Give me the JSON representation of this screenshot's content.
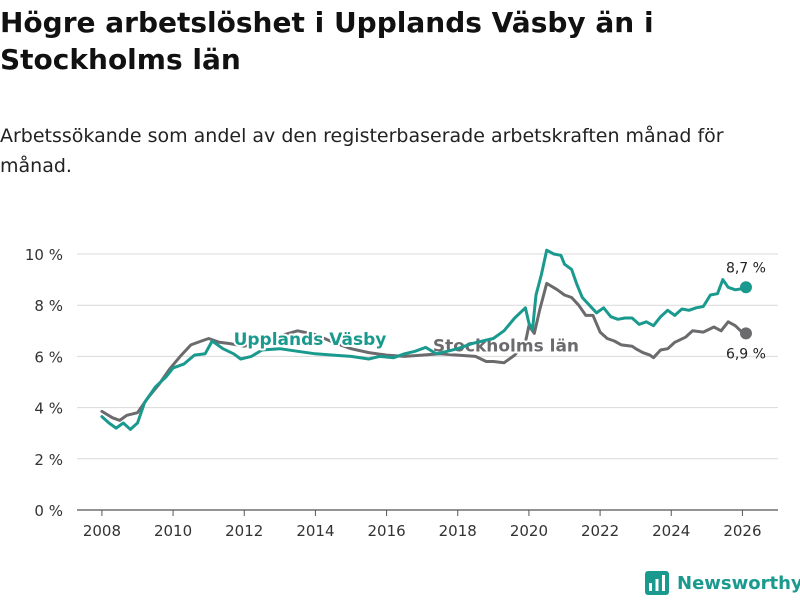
{
  "title": "Högre arbetslöshet i Upplands Väsby än i Stockholms län",
  "subtitle": "Arbetssökande som andel av den registerbaserade arbetskraften månad för månad.",
  "brand": {
    "name": "Newsworthy",
    "icon": "newsworthy-logo-icon"
  },
  "chart_data": {
    "type": "line",
    "xlabel": "",
    "ylabel": "",
    "xlim": [
      2007.3,
      2027
    ],
    "ylim": [
      0,
      10
    ],
    "x_ticks": [
      2008,
      2010,
      2012,
      2014,
      2016,
      2018,
      2020,
      2022,
      2024,
      2026
    ],
    "x_tick_labels": [
      "2008",
      "2010",
      "2012",
      "2014",
      "2016",
      "2018",
      "2020",
      "2022",
      "2024",
      "2026"
    ],
    "y_ticks": [
      0,
      2,
      4,
      6,
      8,
      10
    ],
    "y_tick_labels": [
      "0 %",
      "2 %",
      "4 %",
      "6 %",
      "8 %",
      "10 %"
    ],
    "grid": true,
    "series": [
      {
        "name": "Stockholms län",
        "color": "#6b6b6e",
        "label_at": [
          2017.3,
          6.2
        ],
        "end_label": "6,9 %",
        "points": [
          [
            2008.0,
            3.85
          ],
          [
            2008.3,
            3.6
          ],
          [
            2008.5,
            3.5
          ],
          [
            2008.7,
            3.7
          ],
          [
            2009.0,
            3.8
          ],
          [
            2009.3,
            4.4
          ],
          [
            2009.6,
            4.9
          ],
          [
            2009.9,
            5.5
          ],
          [
            2010.2,
            6.0
          ],
          [
            2010.5,
            6.45
          ],
          [
            2010.8,
            6.6
          ],
          [
            2011.0,
            6.7
          ],
          [
            2011.3,
            6.55
          ],
          [
            2011.6,
            6.5
          ],
          [
            2012.0,
            6.4
          ],
          [
            2012.5,
            6.6
          ],
          [
            2013.0,
            6.8
          ],
          [
            2013.5,
            7.0
          ],
          [
            2014.0,
            6.85
          ],
          [
            2014.5,
            6.55
          ],
          [
            2015.0,
            6.3
          ],
          [
            2015.5,
            6.15
          ],
          [
            2016.0,
            6.05
          ],
          [
            2016.5,
            6.0
          ],
          [
            2017.0,
            6.05
          ],
          [
            2017.5,
            6.1
          ],
          [
            2018.0,
            6.05
          ],
          [
            2018.5,
            6.0
          ],
          [
            2018.8,
            5.8
          ],
          [
            2019.0,
            5.8
          ],
          [
            2019.3,
            5.75
          ],
          [
            2019.6,
            6.05
          ],
          [
            2019.9,
            6.55
          ],
          [
            2020.0,
            7.2
          ],
          [
            2020.15,
            6.9
          ],
          [
            2020.3,
            7.8
          ],
          [
            2020.5,
            8.85
          ],
          [
            2020.8,
            8.6
          ],
          [
            2021.0,
            8.4
          ],
          [
            2021.2,
            8.3
          ],
          [
            2021.4,
            8.0
          ],
          [
            2021.6,
            7.6
          ],
          [
            2021.8,
            7.6
          ],
          [
            2022.0,
            6.95
          ],
          [
            2022.2,
            6.7
          ],
          [
            2022.4,
            6.6
          ],
          [
            2022.6,
            6.45
          ],
          [
            2022.9,
            6.4
          ],
          [
            2023.0,
            6.3
          ],
          [
            2023.2,
            6.15
          ],
          [
            2023.4,
            6.05
          ],
          [
            2023.5,
            5.95
          ],
          [
            2023.7,
            6.25
          ],
          [
            2023.9,
            6.3
          ],
          [
            2024.1,
            6.55
          ],
          [
            2024.4,
            6.75
          ],
          [
            2024.6,
            7.0
          ],
          [
            2024.9,
            6.95
          ],
          [
            2025.2,
            7.15
          ],
          [
            2025.4,
            7.0
          ],
          [
            2025.6,
            7.35
          ],
          [
            2025.8,
            7.2
          ],
          [
            2025.95,
            7.0
          ],
          [
            2026.1,
            6.9
          ]
        ]
      },
      {
        "name": "Upplands Väsby",
        "color": "#1a9a8e",
        "label_at": [
          2011.7,
          6.45
        ],
        "end_label": "8,7 %",
        "points": [
          [
            2008.0,
            3.65
          ],
          [
            2008.2,
            3.4
          ],
          [
            2008.4,
            3.2
          ],
          [
            2008.6,
            3.4
          ],
          [
            2008.8,
            3.15
          ],
          [
            2009.0,
            3.4
          ],
          [
            2009.2,
            4.2
          ],
          [
            2009.5,
            4.8
          ],
          [
            2009.8,
            5.2
          ],
          [
            2010.0,
            5.55
          ],
          [
            2010.3,
            5.7
          ],
          [
            2010.6,
            6.05
          ],
          [
            2010.9,
            6.1
          ],
          [
            2011.1,
            6.6
          ],
          [
            2011.4,
            6.3
          ],
          [
            2011.7,
            6.1
          ],
          [
            2011.9,
            5.9
          ],
          [
            2012.2,
            6.0
          ],
          [
            2012.5,
            6.25
          ],
          [
            2013.0,
            6.3
          ],
          [
            2013.5,
            6.2
          ],
          [
            2014.0,
            6.1
          ],
          [
            2014.5,
            6.05
          ],
          [
            2015.0,
            6.0
          ],
          [
            2015.5,
            5.9
          ],
          [
            2015.8,
            6.0
          ],
          [
            2016.2,
            5.95
          ],
          [
            2016.5,
            6.1
          ],
          [
            2016.8,
            6.2
          ],
          [
            2017.1,
            6.35
          ],
          [
            2017.4,
            6.1
          ],
          [
            2017.7,
            6.2
          ],
          [
            2018.0,
            6.3
          ],
          [
            2018.4,
            6.5
          ],
          [
            2018.7,
            6.6
          ],
          [
            2019.0,
            6.7
          ],
          [
            2019.3,
            7.0
          ],
          [
            2019.6,
            7.5
          ],
          [
            2019.9,
            7.9
          ],
          [
            2020.0,
            7.3
          ],
          [
            2020.1,
            7.05
          ],
          [
            2020.2,
            8.4
          ],
          [
            2020.35,
            9.2
          ],
          [
            2020.5,
            10.15
          ],
          [
            2020.7,
            10.0
          ],
          [
            2020.9,
            9.95
          ],
          [
            2021.0,
            9.6
          ],
          [
            2021.2,
            9.4
          ],
          [
            2021.35,
            8.8
          ],
          [
            2021.5,
            8.3
          ],
          [
            2021.7,
            8.0
          ],
          [
            2021.9,
            7.7
          ],
          [
            2022.1,
            7.9
          ],
          [
            2022.3,
            7.55
          ],
          [
            2022.5,
            7.45
          ],
          [
            2022.7,
            7.5
          ],
          [
            2022.9,
            7.5
          ],
          [
            2023.1,
            7.25
          ],
          [
            2023.3,
            7.35
          ],
          [
            2023.5,
            7.2
          ],
          [
            2023.7,
            7.55
          ],
          [
            2023.9,
            7.8
          ],
          [
            2024.1,
            7.6
          ],
          [
            2024.3,
            7.85
          ],
          [
            2024.5,
            7.8
          ],
          [
            2024.7,
            7.9
          ],
          [
            2024.9,
            7.95
          ],
          [
            2025.1,
            8.4
          ],
          [
            2025.3,
            8.45
          ],
          [
            2025.45,
            9.0
          ],
          [
            2025.6,
            8.7
          ],
          [
            2025.8,
            8.6
          ],
          [
            2026.0,
            8.65
          ],
          [
            2026.1,
            8.7
          ]
        ]
      }
    ]
  }
}
